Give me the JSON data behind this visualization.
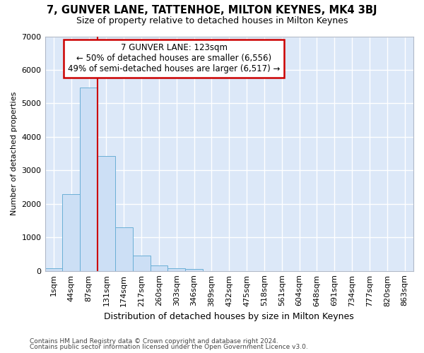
{
  "title": "7, GUNVER LANE, TATTENHOE, MILTON KEYNES, MK4 3BJ",
  "subtitle": "Size of property relative to detached houses in Milton Keynes",
  "xlabel": "Distribution of detached houses by size in Milton Keynes",
  "ylabel": "Number of detached properties",
  "bar_color": "#ccdff5",
  "bar_edge_color": "#6aafd6",
  "background_color": "#dce8f8",
  "grid_color": "#ffffff",
  "fig_bg_color": "#ffffff",
  "categories": [
    "1sqm",
    "44sqm",
    "87sqm",
    "131sqm",
    "174sqm",
    "217sqm",
    "260sqm",
    "303sqm",
    "346sqm",
    "389sqm",
    "432sqm",
    "475sqm",
    "518sqm",
    "561sqm",
    "604sqm",
    "648sqm",
    "691sqm",
    "734sqm",
    "777sqm",
    "820sqm",
    "863sqm"
  ],
  "values": [
    80,
    2280,
    5480,
    3430,
    1310,
    460,
    155,
    80,
    55,
    0,
    0,
    0,
    0,
    0,
    0,
    0,
    0,
    0,
    0,
    0,
    0
  ],
  "vline_bin": 2,
  "annotation_text": "7 GUNVER LANE: 123sqm\n← 50% of detached houses are smaller (6,556)\n49% of semi-detached houses are larger (6,517) →",
  "annotation_box_color": "white",
  "annotation_edge_color": "#cc0000",
  "vline_color": "#cc0000",
  "ylim": [
    0,
    7000
  ],
  "yticks": [
    0,
    1000,
    2000,
    3000,
    4000,
    5000,
    6000,
    7000
  ],
  "footer_line1": "Contains HM Land Registry data © Crown copyright and database right 2024.",
  "footer_line2": "Contains public sector information licensed under the Open Government Licence v3.0."
}
